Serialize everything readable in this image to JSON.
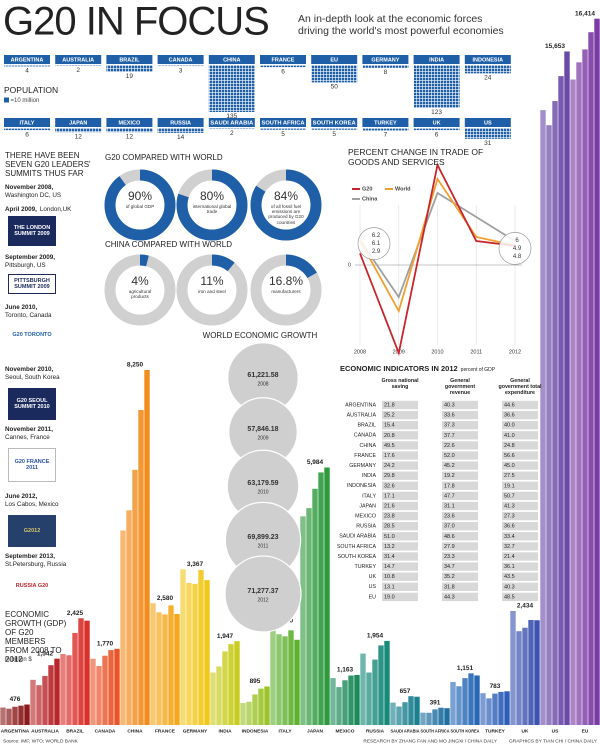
{
  "header": {
    "title": "G20 IN FOCUS",
    "subtitle": "An in-depth look at the economic forces driving the world's most powerful economies"
  },
  "summits": {
    "heading": "THERE HAVE BEEN SEVEN G20 LEADERS' SUMMITS THUS FAR",
    "items": [
      {
        "date": "November 2008,",
        "place": "Washington DC, US"
      },
      {
        "date": "April 2009,",
        "place": "London,UK",
        "logo": "THE LONDON SUMMIT 2009"
      },
      {
        "date": "September 2009,",
        "place": "Pittsburgh, US",
        "logo": "PITTSBURGH SUMMIT 2009"
      },
      {
        "date": "June 2010,",
        "place": "Toronto, Canada",
        "logo": "G20 TORONTO"
      },
      {
        "date": "November 2010,",
        "place": "Seoul, South Korea",
        "logo": "G20 SEOUL SUMMIT 2010"
      },
      {
        "date": "November 2011,",
        "place": "Cannes, France",
        "logo": "G20 FRANCE 2011"
      },
      {
        "date": "June 2012,",
        "place": "Los Cabos, Mexico",
        "logo": "G2012"
      },
      {
        "date": "September 2013,",
        "place": "St.Petersburg, Russia",
        "logo": "RUSSIA G20"
      }
    ]
  },
  "chart_data": [
    {
      "type": "pictogram",
      "title": "POPULATION",
      "legend": "=10 million",
      "color": "#1f5fa8",
      "categories": [
        "ARGENTINA",
        "AUSTRALIA",
        "BRAZIL",
        "CANADA",
        "CHINA",
        "FRANCE",
        "EU",
        "GERMANY",
        "INDIA",
        "INDONESIA",
        "ITALY",
        "JAPAN",
        "MEXICO",
        "RUSSIA",
        "SAUDI ARABIA",
        "SOUTH AFRICA",
        "SOUTH KOREA",
        "TURKEY",
        "UK",
        "US"
      ],
      "values": [
        4,
        2,
        19,
        3,
        135,
        6,
        50,
        8,
        123,
        24,
        6,
        12,
        12,
        14,
        2,
        5,
        5,
        7,
        6,
        31
      ]
    },
    {
      "type": "donut",
      "title": "G20 COMPARED WITH WORLD",
      "color": "#1f5fa8",
      "ylim": [
        0,
        100
      ],
      "categories": [
        "of global GDP",
        "international global trade",
        "of all fossil fuel emissions are produced by G20 countries"
      ],
      "values": [
        90,
        80,
        84
      ],
      "value_labels": [
        "90%",
        "80%",
        "84%"
      ]
    },
    {
      "type": "donut",
      "title": "CHINA COMPARED WITH WORLD",
      "color": "#1f5fa8",
      "ylim": [
        0,
        100
      ],
      "categories": [
        "agricultural products",
        "iron and steel",
        "manufacturers"
      ],
      "values": [
        4,
        11,
        16.8
      ],
      "value_labels": [
        "4%",
        "11%",
        "16.8%"
      ]
    },
    {
      "type": "line",
      "title": "PERCENT CHANGE IN TRADE OF GOODS AND SERVICES",
      "x": [
        2008,
        2009,
        2010,
        2011,
        2012
      ],
      "xlim": [
        2008,
        2012
      ],
      "xticks": [
        2008,
        2009,
        2010,
        2011,
        2012
      ],
      "ylim": [
        -22.5,
        30
      ],
      "yticks": [
        0
      ],
      "series": [
        {
          "name": "G20",
          "color": "#c8262c",
          "values": [
            2.9,
            -22,
            25,
            6,
            4.8
          ],
          "value_labels": [
            "2.9",
            null,
            null,
            null,
            "4.8"
          ]
        },
        {
          "name": "World",
          "color": "#f0a030",
          "values": [
            6.1,
            -11.5,
            21.5,
            7,
            4.9
          ],
          "value_labels": [
            "6.1",
            null,
            null,
            null,
            "4.9"
          ]
        },
        {
          "name": "China",
          "color": "#a0a0a0",
          "values": [
            6.2,
            -8,
            18,
            12,
            6
          ],
          "value_labels": [
            "6.2",
            null,
            null,
            null,
            "6"
          ]
        }
      ]
    },
    {
      "type": "bubble",
      "title": "WORLD ECONOMIC GROWTH",
      "color": "#cfcfcf",
      "categories": [
        "2008",
        "2009",
        "2010",
        "2011",
        "2012"
      ],
      "values": [
        61221.58,
        57846.18,
        63179.59,
        69899.23,
        71277.37
      ],
      "value_labels": [
        "61,221.58",
        "57,846.18",
        "63,179.59",
        "69,899.23",
        "71,277.37"
      ]
    },
    {
      "type": "bar",
      "title": "ECONOMIC GROWTH (GDP) OF G20 MEMBERS FROM 2008 TO 2012",
      "subtitle": "in billion $",
      "ylim": [
        0,
        16500
      ],
      "categories": [
        "ARGENTINA",
        "AUSTRALIA",
        "BRAZIL",
        "CANADA",
        "CHINA",
        "FRANCE",
        "GERMANY",
        "INDIA",
        "INDONESIA",
        "ITALY",
        "JAPAN",
        "MEXICO",
        "RUSSIA",
        "SAUDI ARABIA",
        "SOUTH AFRICA",
        "SOUTH KOREA",
        "TURKEY",
        "UK",
        "US",
        "EU"
      ],
      "colors": [
        "#8b1a1a",
        "#b8262a",
        "#d9302b",
        "#e8552a",
        "#f28c1d",
        "#f5a81c",
        "#f2c71b",
        "#c8cc1f",
        "#9cc42a",
        "#5fb130",
        "#2e9a3e",
        "#1c8a5a",
        "#178a7a",
        "#1a7f8f",
        "#1f6fa0",
        "#2668b4",
        "#2e5fb8",
        "#3c54b0",
        "#6a4aa8",
        "#7b3aa4"
      ],
      "values": [
        [
          406,
          379,
          424,
          450,
          476
        ],
        [
          1050,
          925,
          1140,
          1390,
          1542
        ],
        [
          1650,
          1620,
          2140,
          2480,
          2425
        ],
        [
          1540,
          1370,
          1610,
          1740,
          1770
        ],
        [
          4520,
          4990,
          5930,
          7320,
          8250
        ],
        [
          2830,
          2620,
          2570,
          2780,
          2580
        ],
        [
          3620,
          3300,
          3280,
          3600,
          3367
        ],
        [
          1220,
          1360,
          1710,
          1880,
          1947
        ],
        [
          510,
          540,
          710,
          846,
          895
        ],
        [
          2310,
          2110,
          2060,
          2200,
          1980
        ],
        [
          4850,
          5040,
          5490,
          5870,
          5984
        ],
        [
          1090,
          880,
          1040,
          1150,
          1163
        ],
        [
          1660,
          1220,
          1520,
          1850,
          1954
        ],
        [
          520,
          430,
          530,
          670,
          657
        ],
        [
          287,
          284,
          363,
          402,
          391
        ],
        [
          1000,
          900,
          1090,
          1200,
          1151
        ],
        [
          740,
          620,
          730,
          770,
          783
        ],
        [
          2650,
          2180,
          2260,
          2440,
          2434
        ],
        [
          14290,
          13940,
          14500,
          15080,
          15653
        ],
        [
          15000,
          15400,
          15700,
          16100,
          16414
        ]
      ],
      "value_labels": [
        "476",
        "1,542",
        "2,425",
        "1,770",
        "8,250",
        "2,580",
        "3,367",
        "1,947",
        "895",
        "1,980",
        "5,984",
        "1,163",
        "1,954",
        "657",
        "391",
        "1,151",
        "783",
        "2,434",
        "15,653",
        "16,414"
      ]
    }
  ],
  "table": {
    "title": "ECONOMIC INDICATORS IN 2012",
    "note": "percent of GDP",
    "columns": [
      "Gross national saving",
      "General government revenue",
      "General government total expenditure"
    ],
    "rows": [
      [
        "ARGENTINA",
        "21.8",
        "40.3",
        "44.6"
      ],
      [
        "AUSTRALIA",
        "25.2",
        "33.6",
        "36.6"
      ],
      [
        "BRAZIL",
        "15.4",
        "37.3",
        "40.0"
      ],
      [
        "CANADA",
        "20.8",
        "37.7",
        "41.0"
      ],
      [
        "CHINA",
        "49.5",
        "22.6",
        "24.8"
      ],
      [
        "FRANCE",
        "17.6",
        "52.0",
        "56.6"
      ],
      [
        "GERMANY",
        "24.2",
        "45.2",
        "45.0"
      ],
      [
        "INDIA",
        "29.8",
        "19.2",
        "27.5"
      ],
      [
        "INDONESIA",
        "32.6",
        "17.8",
        "19.1"
      ],
      [
        "ITALY",
        "17.1",
        "47.7",
        "50.7"
      ],
      [
        "JAPAN",
        "21.6",
        "31.1",
        "41.3"
      ],
      [
        "MEXICO",
        "23.8",
        "23.6",
        "27.3"
      ],
      [
        "RUSSIA",
        "28.5",
        "37.0",
        "36.6"
      ],
      [
        "SAUDI ARABIA",
        "51.0",
        "48.6",
        "33.4"
      ],
      [
        "SOUTH AFRICA",
        "13.2",
        "27.9",
        "32.7"
      ],
      [
        "SOUTH KOREA",
        "31.4",
        "23.3",
        "21.4"
      ],
      [
        "TURKEY",
        "14.7",
        "34.7",
        "36.1"
      ],
      [
        "UK",
        "10.8",
        "35.2",
        "43.5"
      ],
      [
        "US",
        "13.1",
        "31.8",
        "40.3"
      ],
      [
        "EU",
        "19.0",
        "44.3",
        "48.5"
      ]
    ]
  },
  "footer": {
    "source": "Source: IMF; WTO; WORLD BANK",
    "research": "RESEARCH BY ZHANG FAN AND MO JINGXI / CHINA DAILY",
    "graphics": "GRAPHICS BY TIAN CHI / CHINA DAILY"
  }
}
